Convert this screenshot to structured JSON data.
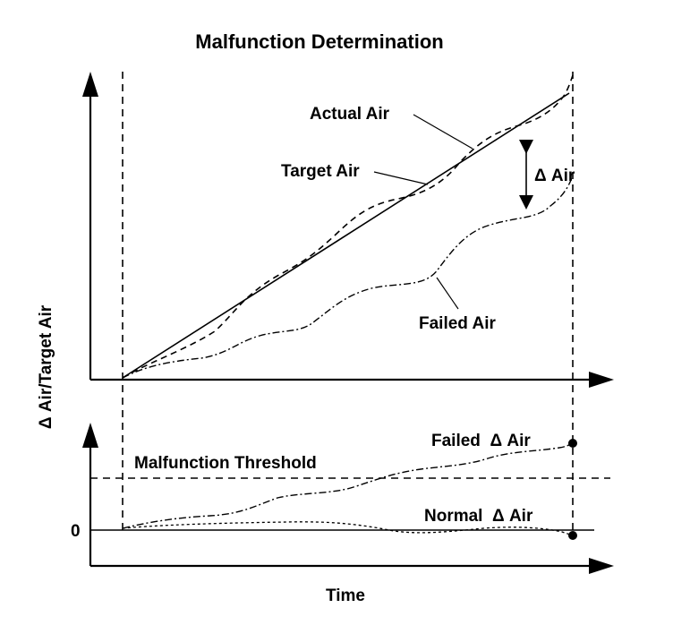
{
  "title": "Malfunction Determination",
  "labels": {
    "actual_air": "Actual Air",
    "target_air": "Target Air",
    "delta_air": "Δ Air",
    "failed_air": "Failed Air",
    "y_axis": "Δ Air/Target Air",
    "malfunction_threshold": "Malfunction Threshold",
    "failed_delta_air": "Failed  Δ Air",
    "normal_delta_air": "Normal  Δ Air",
    "zero_tick": "0",
    "x_axis": "Time"
  }
}
